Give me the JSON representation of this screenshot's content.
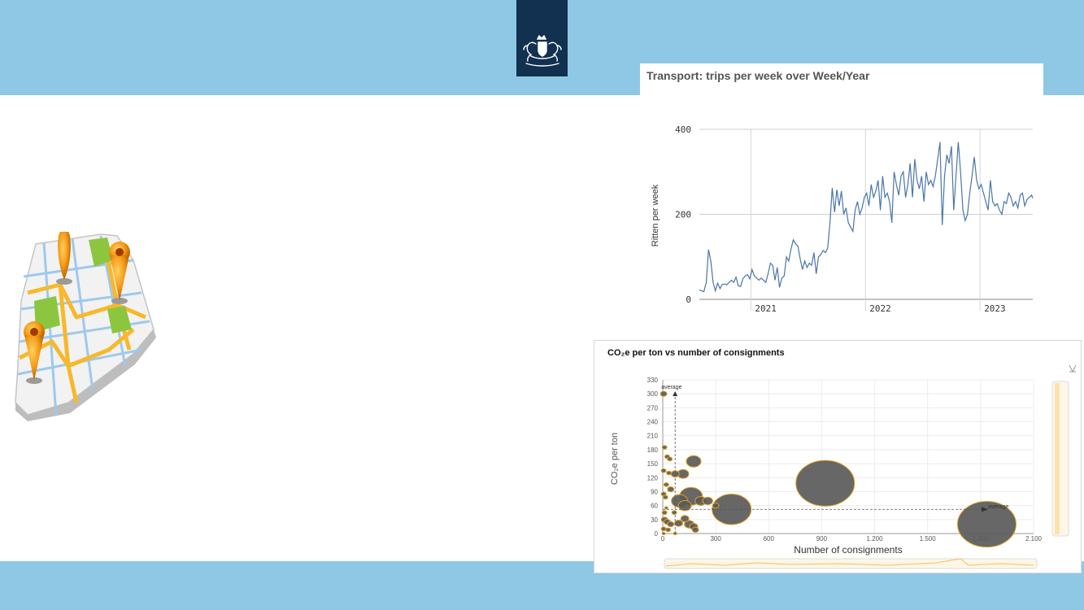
{
  "slide": {
    "band_color": "#8fc8e5",
    "logo_bg": "#12304f",
    "logo": "rijksoverheid-lion-crest-icon",
    "illustration": "city-map-with-location-pins-icon"
  },
  "chart_data": [
    {
      "type": "line",
      "title": "Transport: trips per week over Week/Year",
      "ylabel": "Ritten per week",
      "xlabel": "",
      "ylim": [
        0,
        400
      ],
      "xlim": [
        2020.55,
        2023.46
      ],
      "y_ticks": [
        "0",
        "200",
        "400"
      ],
      "x_ticks": [
        {
          "value": 2021,
          "label": "2021"
        },
        {
          "value": 2022,
          "label": "2022"
        },
        {
          "value": 2023,
          "label": "2023"
        }
      ],
      "grid": true,
      "line_color": "#4a76a8",
      "series": [
        {
          "values": [
            [
              2020.55,
              22
            ],
            [
              2020.57,
              20
            ],
            [
              2020.59,
              18
            ],
            [
              2020.61,
              40
            ],
            [
              2020.63,
              117
            ],
            [
              2020.65,
              90
            ],
            [
              2020.67,
              40
            ],
            [
              2020.69,
              20
            ],
            [
              2020.71,
              38
            ],
            [
              2020.73,
              25
            ],
            [
              2020.75,
              35
            ],
            [
              2020.77,
              36
            ],
            [
              2020.79,
              34
            ],
            [
              2020.81,
              40
            ],
            [
              2020.83,
              45
            ],
            [
              2020.85,
              40
            ],
            [
              2020.87,
              52
            ],
            [
              2020.89,
              32
            ],
            [
              2020.91,
              30
            ],
            [
              2020.93,
              48
            ],
            [
              2020.95,
              55
            ],
            [
              2020.97,
              58
            ],
            [
              2020.99,
              48
            ],
            [
              2021.01,
              70
            ],
            [
              2021.03,
              55
            ],
            [
              2021.05,
              50
            ],
            [
              2021.07,
              45
            ],
            [
              2021.09,
              50
            ],
            [
              2021.11,
              45
            ],
            [
              2021.13,
              40
            ],
            [
              2021.15,
              60
            ],
            [
              2021.17,
              85
            ],
            [
              2021.19,
              80
            ],
            [
              2021.21,
              45
            ],
            [
              2021.23,
              75
            ],
            [
              2021.25,
              28
            ],
            [
              2021.27,
              50
            ],
            [
              2021.29,
              55
            ],
            [
              2021.31,
              100
            ],
            [
              2021.33,
              90
            ],
            [
              2021.35,
              118
            ],
            [
              2021.37,
              140
            ],
            [
              2021.39,
              130
            ],
            [
              2021.41,
              125
            ],
            [
              2021.43,
              95
            ],
            [
              2021.45,
              70
            ],
            [
              2021.47,
              90
            ],
            [
              2021.49,
              75
            ],
            [
              2021.51,
              85
            ],
            [
              2021.53,
              80
            ],
            [
              2021.55,
              110
            ],
            [
              2021.57,
              60
            ],
            [
              2021.59,
              100
            ],
            [
              2021.61,
              105
            ],
            [
              2021.63,
              115
            ],
            [
              2021.65,
              110
            ],
            [
              2021.67,
              120
            ],
            [
              2021.69,
              180
            ],
            [
              2021.71,
              262
            ],
            [
              2021.73,
              205
            ],
            [
              2021.75,
              258
            ],
            [
              2021.77,
              220
            ],
            [
              2021.79,
              255
            ],
            [
              2021.81,
              200
            ],
            [
              2021.83,
              215
            ],
            [
              2021.85,
              180
            ],
            [
              2021.87,
              170
            ],
            [
              2021.89,
              160
            ],
            [
              2021.91,
              210
            ],
            [
              2021.93,
              230
            ],
            [
              2021.95,
              200
            ],
            [
              2021.97,
              215
            ],
            [
              2021.99,
              240
            ],
            [
              2022.01,
              250
            ],
            [
              2022.03,
              220
            ],
            [
              2022.05,
              270
            ],
            [
              2022.07,
              240
            ],
            [
              2022.09,
              255
            ],
            [
              2022.11,
              280
            ],
            [
              2022.13,
              210
            ],
            [
              2022.15,
              290
            ],
            [
              2022.17,
              240
            ],
            [
              2022.19,
              250
            ],
            [
              2022.21,
              230
            ],
            [
              2022.23,
              180
            ],
            [
              2022.25,
              300
            ],
            [
              2022.27,
              270
            ],
            [
              2022.29,
              245
            ],
            [
              2022.31,
              290
            ],
            [
              2022.33,
              300
            ],
            [
              2022.35,
              240
            ],
            [
              2022.37,
              270
            ],
            [
              2022.39,
              320
            ],
            [
              2022.41,
              240
            ],
            [
              2022.43,
              330
            ],
            [
              2022.45,
              280
            ],
            [
              2022.47,
              260
            ],
            [
              2022.49,
              290
            ],
            [
              2022.51,
              230
            ],
            [
              2022.53,
              300
            ],
            [
              2022.55,
              270
            ],
            [
              2022.57,
              280
            ],
            [
              2022.59,
              265
            ],
            [
              2022.61,
              290
            ],
            [
              2022.63,
              330
            ],
            [
              2022.65,
              370
            ],
            [
              2022.67,
              175
            ],
            [
              2022.69,
              290
            ],
            [
              2022.71,
              340
            ],
            [
              2022.73,
              320
            ],
            [
              2022.75,
              360
            ],
            [
              2022.77,
              210
            ],
            [
              2022.79,
              290
            ],
            [
              2022.81,
              370
            ],
            [
              2022.83,
              300
            ],
            [
              2022.85,
              210
            ],
            [
              2022.87,
              185
            ],
            [
              2022.89,
              200
            ],
            [
              2022.91,
              250
            ],
            [
              2022.93,
              290
            ],
            [
              2022.95,
              335
            ],
            [
              2022.97,
              280
            ],
            [
              2022.99,
              260
            ],
            [
              2023.01,
              270
            ],
            [
              2023.03,
              250
            ],
            [
              2023.05,
              230
            ],
            [
              2023.07,
              210
            ],
            [
              2023.09,
              280
            ],
            [
              2023.11,
              230
            ],
            [
              2023.13,
              220
            ],
            [
              2023.15,
              225
            ],
            [
              2023.17,
              210
            ],
            [
              2023.19,
              200
            ],
            [
              2023.21,
              230
            ],
            [
              2023.23,
              225
            ],
            [
              2023.25,
              250
            ],
            [
              2023.27,
              240
            ],
            [
              2023.29,
              220
            ],
            [
              2023.31,
              230
            ],
            [
              2023.33,
              215
            ],
            [
              2023.35,
              245
            ],
            [
              2023.37,
              250
            ],
            [
              2023.39,
              220
            ],
            [
              2023.41,
              235
            ],
            [
              2023.43,
              240
            ],
            [
              2023.45,
              245
            ],
            [
              2023.46,
              238
            ]
          ]
        }
      ]
    },
    {
      "type": "scatter",
      "title": "CO₂e per ton vs number of consignments",
      "xlabel": "Number of consignments",
      "ylabel": "CO₂e per ton",
      "xlim": [
        0,
        2100
      ],
      "ylim": [
        0,
        330
      ],
      "x_ticks": [
        "0",
        "300",
        "600",
        "900",
        "1.200",
        "1.500",
        "1.800",
        "2.100"
      ],
      "y_ticks": [
        "0",
        "30",
        "60",
        "90",
        "120",
        "150",
        "180",
        "210",
        "240",
        "270",
        "300",
        "330"
      ],
      "grid": true,
      "bubble_color": "#5a5a5a",
      "bubble_edge": "#e0a020",
      "average_x": 70,
      "average_y": 52,
      "average_label": "average",
      "points": [
        {
          "x": 5,
          "y": 300,
          "size": 4
        },
        {
          "x": 10,
          "y": 185,
          "size": 3
        },
        {
          "x": 25,
          "y": 165,
          "size": 3
        },
        {
          "x": 40,
          "y": 160,
          "size": 3
        },
        {
          "x": 175,
          "y": 155,
          "size": 9
        },
        {
          "x": 5,
          "y": 135,
          "size": 3
        },
        {
          "x": 35,
          "y": 130,
          "size": 3
        },
        {
          "x": 70,
          "y": 128,
          "size": 5
        },
        {
          "x": 115,
          "y": 128,
          "size": 7
        },
        {
          "x": 20,
          "y": 105,
          "size": 3
        },
        {
          "x": 45,
          "y": 95,
          "size": 4
        },
        {
          "x": 5,
          "y": 85,
          "size": 3
        },
        {
          "x": 15,
          "y": 78,
          "size": 3
        },
        {
          "x": 160,
          "y": 80,
          "size": 14
        },
        {
          "x": 95,
          "y": 70,
          "size": 10
        },
        {
          "x": 125,
          "y": 60,
          "size": 8
        },
        {
          "x": 215,
          "y": 70,
          "size": 7
        },
        {
          "x": 255,
          "y": 70,
          "size": 6
        },
        {
          "x": 300,
          "y": 60,
          "size": 4
        },
        {
          "x": 390,
          "y": 52,
          "size": 24
        },
        {
          "x": 920,
          "y": 108,
          "size": 36
        },
        {
          "x": 1835,
          "y": 20,
          "size": 36
        },
        {
          "x": 10,
          "y": 45,
          "size": 3
        },
        {
          "x": 65,
          "y": 45,
          "size": 3
        },
        {
          "x": 10,
          "y": 30,
          "size": 4
        },
        {
          "x": 25,
          "y": 25,
          "size": 4
        },
        {
          "x": 45,
          "y": 20,
          "size": 4
        },
        {
          "x": 90,
          "y": 22,
          "size": 5
        },
        {
          "x": 125,
          "y": 32,
          "size": 5
        },
        {
          "x": 150,
          "y": 20,
          "size": 6
        },
        {
          "x": 175,
          "y": 15,
          "size": 5
        },
        {
          "x": 185,
          "y": 8,
          "size": 4
        },
        {
          "x": 5,
          "y": 10,
          "size": 3
        },
        {
          "x": 30,
          "y": 8,
          "size": 3
        },
        {
          "x": 70,
          "y": 0,
          "size": 2
        },
        {
          "x": 5,
          "y": 0,
          "size": 2
        },
        {
          "x": 20,
          "y": 55,
          "size": 2
        }
      ]
    }
  ]
}
